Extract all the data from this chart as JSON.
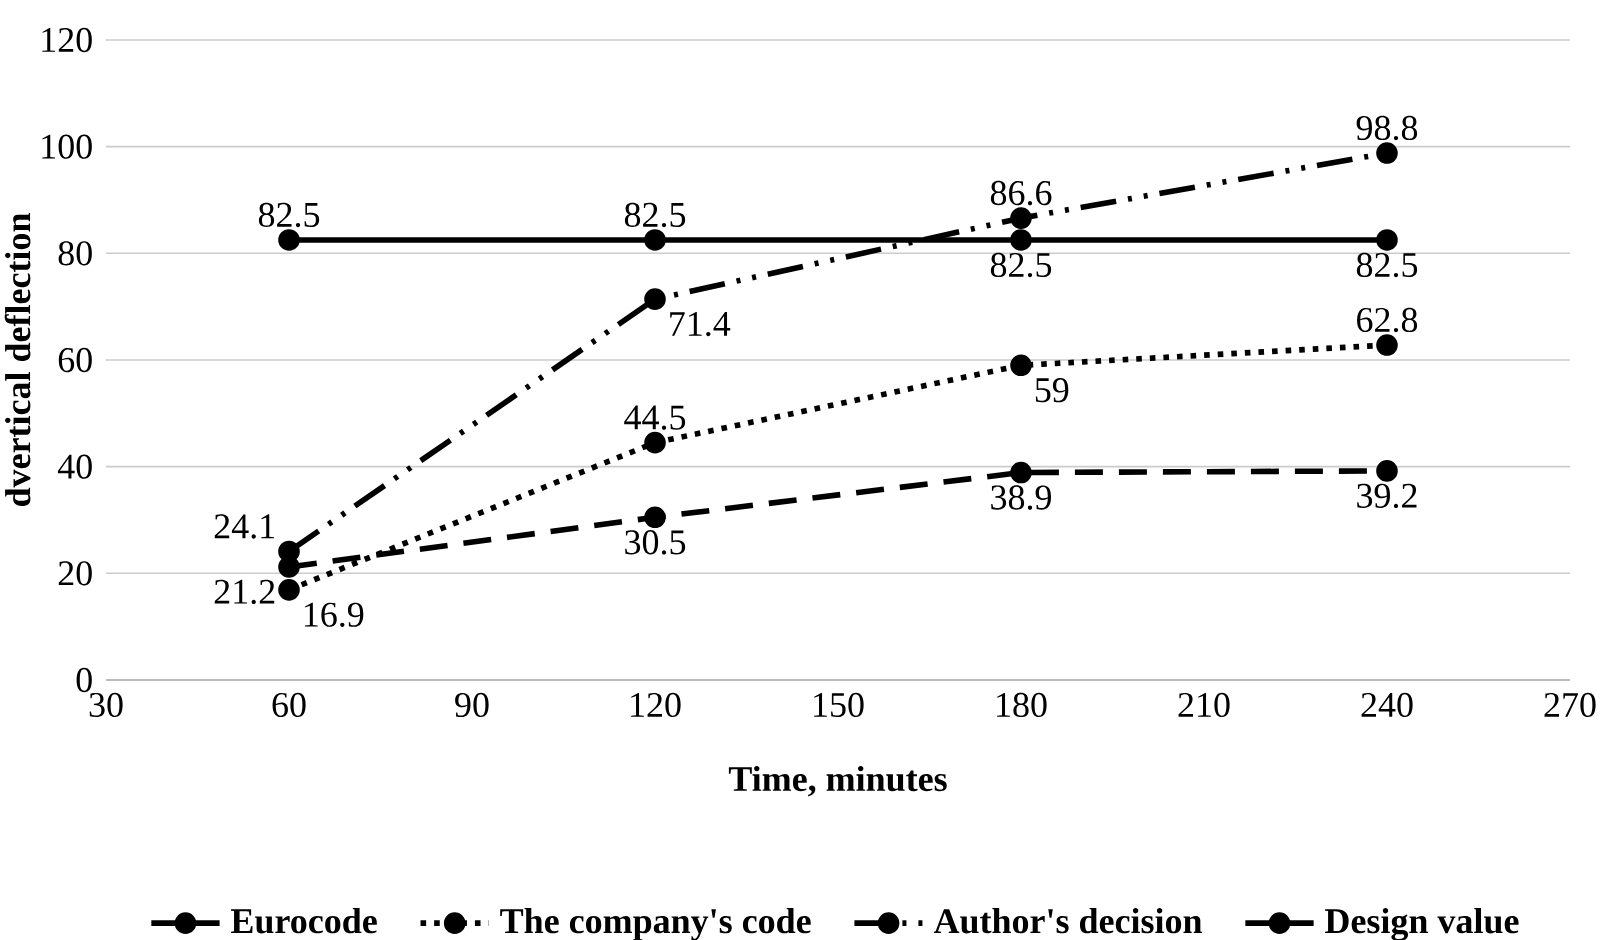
{
  "chart_data": {
    "type": "line",
    "xlabel": "Time, minutes",
    "ylabel": "dvertical deflection",
    "x": [
      60,
      120,
      180,
      240
    ],
    "series": [
      {
        "name": "Eurocode",
        "color": "#000000",
        "line_style": "dashed",
        "values": [
          21.2,
          30.5,
          38.9,
          39.2
        ]
      },
      {
        "name": "The company's code",
        "color": "#000000",
        "line_style": "dotted",
        "values": [
          16.9,
          44.5,
          59,
          62.8
        ]
      },
      {
        "name": "Author's decision",
        "color": "#000000",
        "line_style": "dashdotdot",
        "values": [
          24.1,
          71.4,
          86.6,
          98.8
        ]
      },
      {
        "name": "Design value",
        "color": "#000000",
        "line_style": "solid",
        "values": [
          82.5,
          82.5,
          82.5,
          82.5
        ]
      }
    ],
    "xlim": [
      30,
      270
    ],
    "xticks": [
      30,
      60,
      90,
      120,
      150,
      180,
      210,
      240,
      270
    ],
    "ylim": [
      0,
      120
    ],
    "yticks": [
      0,
      20,
      40,
      60,
      80,
      100,
      120
    ],
    "grid": "y",
    "legend": "bottom",
    "marker": "circle",
    "data_labels": true
  }
}
